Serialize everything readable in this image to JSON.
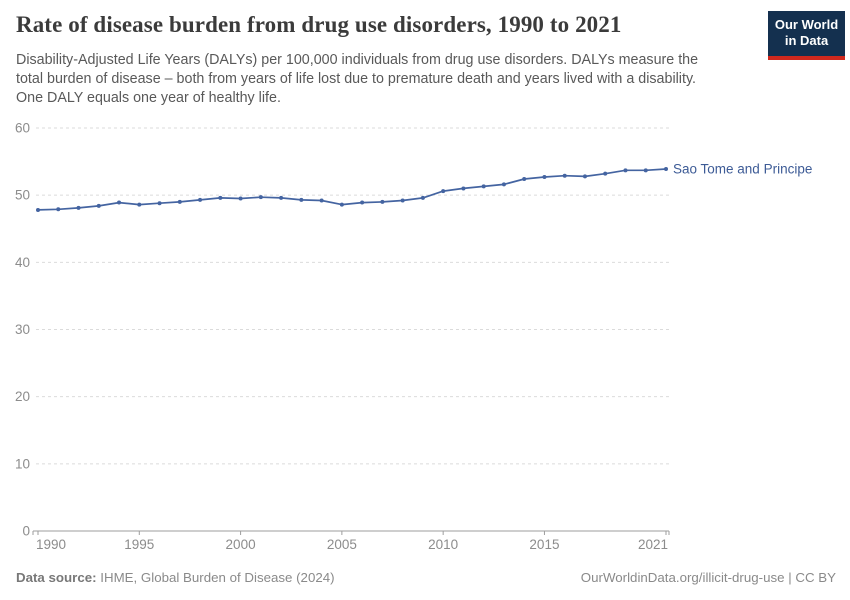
{
  "header": {
    "title": "Rate of disease burden from drug use disorders, 1990 to 2021",
    "subtitle": "Disability-Adjusted Life Years (DALYs) per 100,000 individuals from drug use disorders. DALYs measure the total burden of disease – both from years of life lost due to premature death and years lived with a disability. One DALY equals one year of healthy life.",
    "logo": {
      "line1": "Our World",
      "line2": "in Data"
    }
  },
  "chart_data": {
    "type": "line",
    "title": "Rate of disease burden from drug use disorders, 1990 to 2021",
    "xlabel": "",
    "ylabel": "",
    "xlim": [
      1990,
      2021
    ],
    "ylim": [
      0,
      60
    ],
    "x_ticks": [
      1990,
      1995,
      2000,
      2005,
      2010,
      2015,
      2021
    ],
    "y_ticks": [
      0,
      10,
      20,
      30,
      40,
      50,
      60
    ],
    "grid": "horizontal-dashed",
    "legend_position": "line-end-label",
    "x": [
      1990,
      1991,
      1992,
      1993,
      1994,
      1995,
      1996,
      1997,
      1998,
      1999,
      2000,
      2001,
      2002,
      2003,
      2004,
      2005,
      2006,
      2007,
      2008,
      2009,
      2010,
      2011,
      2012,
      2013,
      2014,
      2015,
      2016,
      2017,
      2018,
      2019,
      2020,
      2021
    ],
    "series": [
      {
        "name": "Sao Tome and Principe",
        "values": [
          47.8,
          47.9,
          48.1,
          48.4,
          48.9,
          48.6,
          48.8,
          49.0,
          49.3,
          49.6,
          49.5,
          49.7,
          49.6,
          49.3,
          49.2,
          48.6,
          48.9,
          49.0,
          49.2,
          49.6,
          50.6,
          51.0,
          51.3,
          51.6,
          52.4,
          52.7,
          52.9,
          52.8,
          53.2,
          53.7,
          53.7,
          53.9
        ]
      }
    ]
  },
  "colors": {
    "line": "#4464A1",
    "entity_label": "#3D5B96",
    "gridline": "#DBDBDB",
    "axis": "#9E9E9E",
    "tick_text": "#8C8C8C",
    "logo_bg": "#14304F",
    "logo_stripe": "#D0281D"
  },
  "footer": {
    "datasource_label": "Data source:",
    "datasource_value": "IHME, Global Burden of Disease (2024)",
    "credit": "OurWorldinData.org/illicit-drug-use | CC BY"
  }
}
